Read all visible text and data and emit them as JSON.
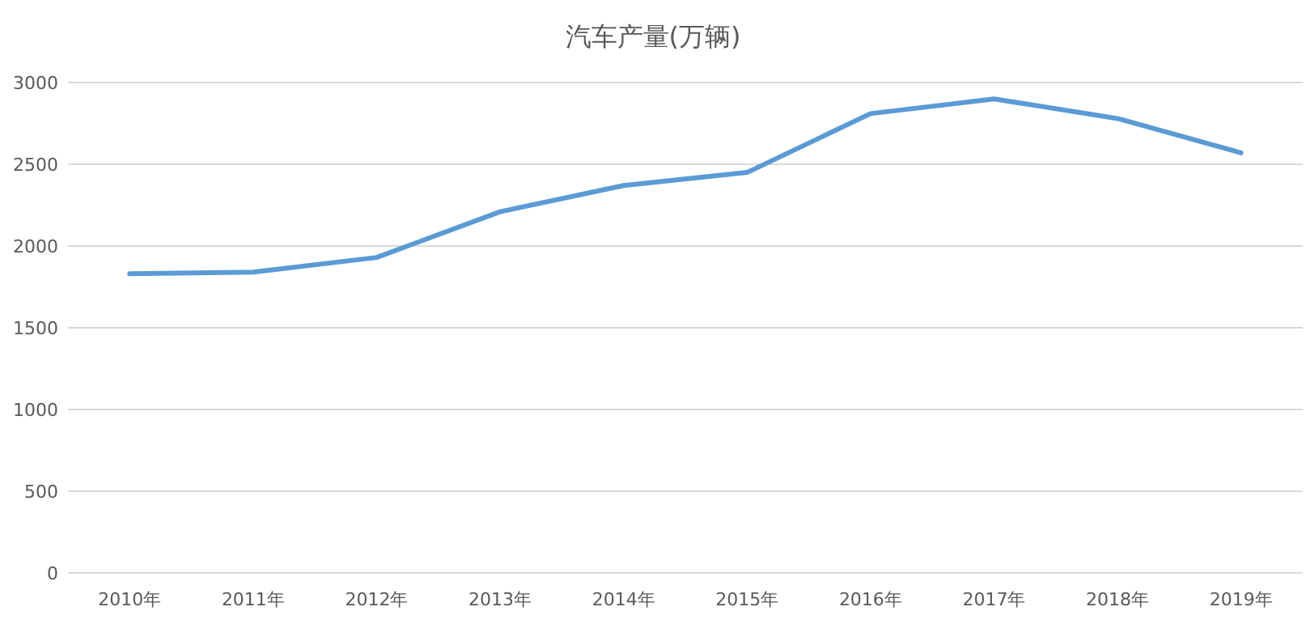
{
  "chart_data": {
    "type": "line",
    "title": "汽车产量(万辆)",
    "categories": [
      "2010年",
      "2011年",
      "2012年",
      "2013年",
      "2014年",
      "2015年",
      "2016年",
      "2017年",
      "2018年",
      "2019年"
    ],
    "series": [
      {
        "color": "#5b9bd5",
        "values": [
          1830,
          1840,
          1930,
          2210,
          2370,
          2450,
          2810,
          2900,
          2780,
          2570
        ]
      }
    ],
    "ylim": [
      0,
      3000
    ],
    "yticks": [
      0,
      500,
      1000,
      1500,
      2000,
      2500,
      3000
    ],
    "grid": "y",
    "marker": "none",
    "line_style": "solid"
  }
}
